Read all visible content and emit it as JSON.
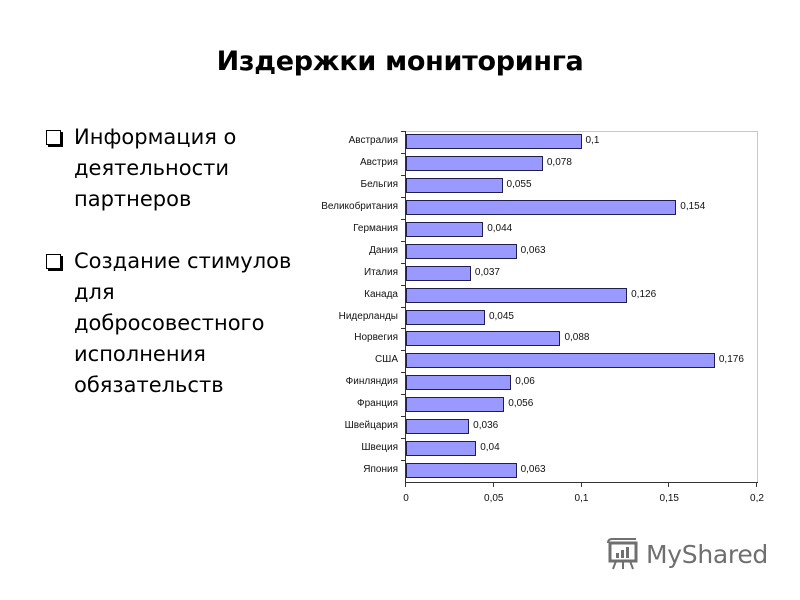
{
  "slide": {
    "title": "Издержки мониторинга",
    "bullets": [
      {
        "icon": "checkbox-square-icon",
        "lines": [
          "Информация о",
          "деятельности",
          "партнеров"
        ]
      },
      {
        "icon": "checkbox-square-icon",
        "lines": [
          "Создание стимулов",
          "для",
          "добросовестного",
          "исполнения",
          "обязательств"
        ]
      }
    ]
  },
  "watermark": {
    "icon": "myshared-logo-icon",
    "text": "MyShared"
  },
  "chart_data": {
    "type": "bar",
    "orientation": "horizontal",
    "title": "",
    "xlabel": "",
    "ylabel": "",
    "categories": [
      "Австралия",
      "Австрия",
      "Бельгия",
      "Великобритания",
      "Германия",
      "Дания",
      "Италия",
      "Канада",
      "Нидерланды",
      "Норвегия",
      "США",
      "Финляндия",
      "Франция",
      "Швейцария",
      "Швеция",
      "Япония"
    ],
    "values": [
      0.1,
      0.078,
      0.055,
      0.154,
      0.044,
      0.063,
      0.037,
      0.126,
      0.045,
      0.088,
      0.176,
      0.06,
      0.056,
      0.036,
      0.04,
      0.063
    ],
    "value_labels": [
      "0,1",
      "0,078",
      "0,055",
      "0,154",
      "0,044",
      "0,063",
      "0,037",
      "0,126",
      "0,045",
      "0,088",
      "0,176",
      "0,06",
      "0,056",
      "0,036",
      "0,04",
      "0,063"
    ],
    "xlim": [
      0,
      0.2
    ],
    "xticks": [
      0,
      0.05,
      0.1,
      0.15,
      0.2
    ],
    "xtick_labels": [
      "0",
      "0,05",
      "0,1",
      "0,15",
      "0,2"
    ],
    "grid": false,
    "legend": null,
    "colors": {
      "bar_fill": "#9999ff",
      "bar_border": "#1f1f4f"
    }
  }
}
